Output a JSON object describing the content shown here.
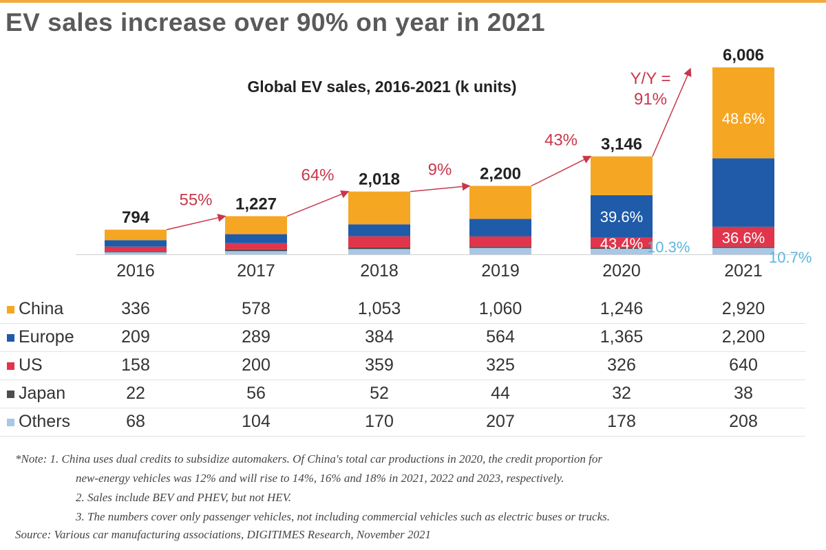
{
  "headline": "EV sales increase over 90% on year in 2021",
  "chart_data": {
    "type": "bar",
    "stacked": true,
    "title": "Global EV sales, 2016-2021 (k units)",
    "categories": [
      "2016",
      "2017",
      "2018",
      "2019",
      "2020",
      "2021"
    ],
    "series": [
      {
        "name": "China",
        "color": "#f5a623",
        "values": [
          336,
          578,
          1053,
          1060,
          1246,
          2920
        ],
        "display": [
          "336",
          "578",
          "1,053",
          "1,060",
          "1,246",
          "2,920"
        ]
      },
      {
        "name": "Europe",
        "color": "#1f5ba8",
        "values": [
          209,
          289,
          384,
          564,
          1365,
          2200
        ],
        "display": [
          "209",
          "289",
          "384",
          "564",
          "1,365",
          "2,200"
        ]
      },
      {
        "name": "US",
        "color": "#e0354b",
        "values": [
          158,
          200,
          359,
          325,
          326,
          640
        ],
        "display": [
          "158",
          "200",
          "359",
          "325",
          "326",
          "640"
        ]
      },
      {
        "name": "Japan",
        "color": "#4d4d4d",
        "values": [
          22,
          56,
          52,
          44,
          32,
          38
        ],
        "display": [
          "22",
          "56",
          "52",
          "44",
          "32",
          "38"
        ]
      },
      {
        "name": "Others",
        "color": "#a9c7e6",
        "values": [
          68,
          104,
          170,
          207,
          178,
          208
        ],
        "display": [
          "68",
          "104",
          "170",
          "207",
          "178",
          "208"
        ]
      }
    ],
    "totals": [
      "794",
      "1,227",
      "2,018",
      "2,200",
      "3,146",
      "6,006"
    ],
    "totals_values": [
      794,
      1227,
      2018,
      2200,
      3146,
      6006
    ],
    "growth_labels": [
      "55%",
      "64%",
      "9%",
      "43%",
      "Y/Y =\n91%"
    ],
    "share_labels": [
      {
        "category": "2020",
        "series": "Europe",
        "text": "39.6%",
        "color": "#ffffff"
      },
      {
        "category": "2020",
        "series": "US",
        "text": "43.4%",
        "color": "#ffffff"
      },
      {
        "category": "2020",
        "series": "Others",
        "text": "10.3%",
        "color": "#5bb7dc"
      },
      {
        "category": "2021",
        "series": "China",
        "text": "48.6%",
        "color": "#ffffff"
      },
      {
        "category": "2021",
        "series": "US",
        "text": "36.6%",
        "color": "#ffffff"
      },
      {
        "category": "2021",
        "series": "Others",
        "text": "10.7%",
        "color": "#5bb7dc"
      }
    ],
    "colors": {
      "growth": "#c8374b",
      "others_label": "#5bb7dc"
    }
  },
  "notes": [
    "*Note: 1. China uses dual credits to subsidize automakers. Of China's total car productions in 2020, the credit proportion for",
    "new-energy vehicles was 12% and will rise to 14%, 16% and 18%  in 2021, 2022 and 2023, respectively.",
    "2. Sales include BEV and PHEV, but not HEV.",
    "3. The numbers cover only passenger vehicles, not including commercial vehicles such as electric buses or trucks.",
    "Source: Various car manufacturing associations, DIGITIMES Research, November 2021"
  ]
}
